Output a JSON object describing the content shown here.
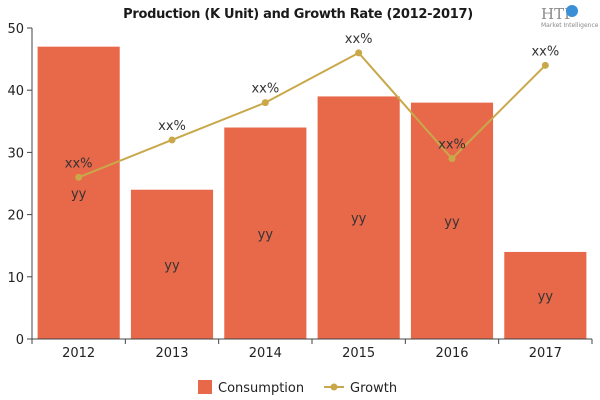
{
  "chart_data": {
    "type": "bar",
    "title": "Production (K Unit) and Growth Rate (2012-2017)",
    "xlabel": "",
    "ylabel": "",
    "categories": [
      "2012",
      "2013",
      "2014",
      "2015",
      "2016",
      "2017"
    ],
    "ylim": [
      0,
      50
    ],
    "yticks": [
      0,
      10,
      20,
      30,
      40,
      50
    ],
    "grid": false,
    "legend_position": "bottom",
    "series": [
      {
        "name": "Consumption",
        "type": "bar",
        "color": "#e8684a",
        "values": [
          47,
          24,
          34,
          39,
          38,
          14
        ],
        "labels": [
          "yy",
          "yy",
          "yy",
          "yy",
          "yy",
          "yy"
        ]
      },
      {
        "name": "Growth",
        "type": "line",
        "color": "#c9a84a",
        "values": [
          26,
          32,
          38,
          46,
          29,
          44
        ],
        "labels": [
          "xx%",
          "xx%",
          "xx%",
          "xx%",
          "xx%",
          "xx%"
        ]
      }
    ]
  },
  "logo": {
    "text": "HTF",
    "subtext": "Market Intelligence"
  }
}
